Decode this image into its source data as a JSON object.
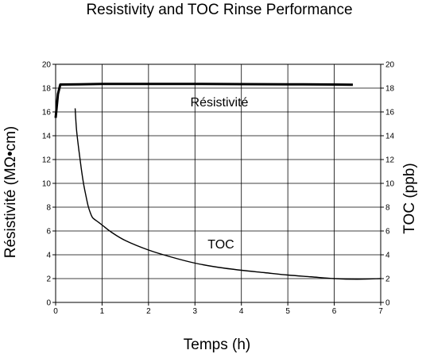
{
  "chart_data": {
    "type": "line",
    "title": "Resistivity and TOC Rinse Performance",
    "xlabel": "Temps (h)",
    "ylabel": "Résistivité (MΩ•cm)",
    "y2label": "TOC (ppb)",
    "xlim": [
      0,
      7
    ],
    "ylim": [
      0,
      20
    ],
    "y2lim": [
      0,
      20
    ],
    "xticks": [
      "0",
      "1",
      "2",
      "3",
      "4",
      "5",
      "6",
      "7"
    ],
    "yticks": [
      "0",
      "2",
      "4",
      "6",
      "8",
      "10",
      "12",
      "14",
      "16",
      "18",
      "20"
    ],
    "y2ticks": [
      "0",
      "2",
      "4",
      "6",
      "8",
      "10",
      "12",
      "14",
      "16",
      "18",
      "20"
    ],
    "grid": true,
    "series": [
      {
        "name": "Résistivité",
        "axis": "left",
        "color": "#000000",
        "x": [
          0,
          0.05,
          0.1,
          0.5,
          1,
          2,
          3,
          4,
          5,
          6,
          6.4
        ],
        "y": [
          15.5,
          17.5,
          18.3,
          18.32,
          18.35,
          18.35,
          18.35,
          18.33,
          18.32,
          18.3,
          18.28
        ]
      },
      {
        "name": "TOC",
        "axis": "right",
        "color": "#000000",
        "x": [
          0.42,
          0.45,
          0.5,
          0.55,
          0.6,
          0.65,
          0.7,
          0.75,
          0.8,
          0.9,
          1,
          1.2,
          1.5,
          2,
          2.5,
          3,
          3.5,
          4,
          4.5,
          5,
          5.5,
          6,
          6.5,
          7
        ],
        "y": [
          16.3,
          14.5,
          12.8,
          11.3,
          10,
          9,
          8.1,
          7.5,
          7.1,
          6.8,
          6.5,
          5.9,
          5.2,
          4.4,
          3.8,
          3.3,
          2.95,
          2.7,
          2.5,
          2.3,
          2.15,
          2.0,
          1.95,
          2.0
        ]
      }
    ]
  }
}
